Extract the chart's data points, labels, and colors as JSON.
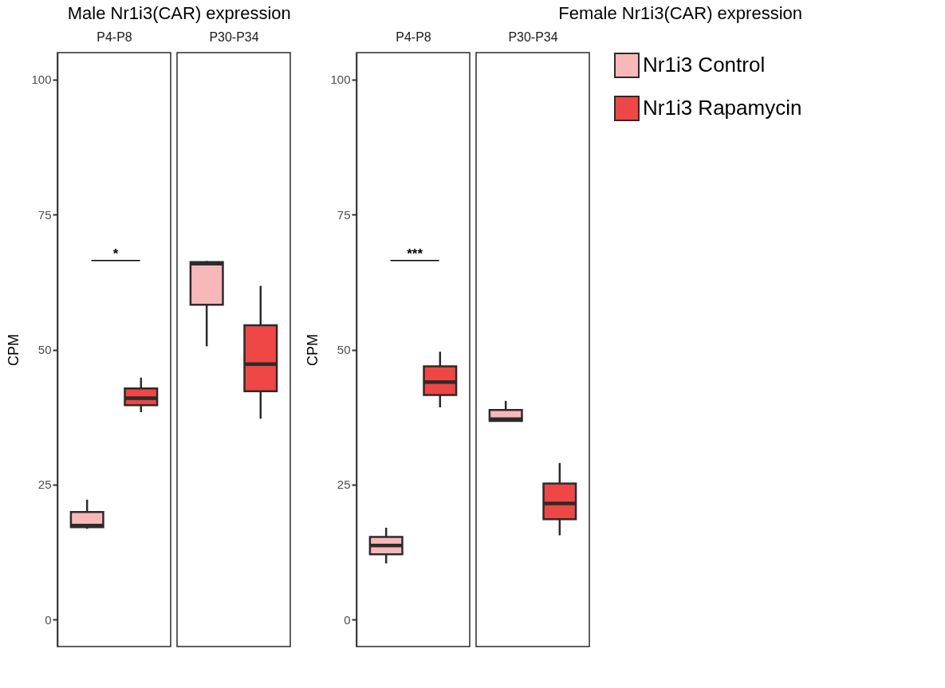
{
  "chart_data": [
    {
      "type": "box",
      "title": "Male Nr1i3(CAR) expression",
      "ylabel": "CPM",
      "categories": [
        "P4-P8",
        "P30-P34"
      ],
      "ylim": [
        -5,
        105
      ],
      "yticks": [
        0,
        25,
        50,
        75,
        100
      ],
      "annotations": [
        "*"
      ],
      "series": [
        {
          "color": "#f8b8b9",
          "boxes": [
            {
              "low": 16.8,
              "q1": 17.1,
              "median": 17.4,
              "q3": 19.9,
              "high": 22.2
            },
            {
              "low": 50.6,
              "q1": 58.3,
              "median": 65.9,
              "q3": 66.2,
              "high": 66.4
            }
          ]
        },
        {
          "color": "#ef4646",
          "boxes": [
            {
              "low": 38.4,
              "q1": 39.7,
              "median": 41.0,
              "q3": 42.8,
              "high": 44.8
            },
            {
              "low": 37.2,
              "q1": 42.3,
              "median": 47.3,
              "q3": 54.5,
              "high": 61.8
            }
          ]
        }
      ]
    },
    {
      "type": "box",
      "title": "Female Nr1i3(CAR) expression",
      "ylabel": "CPM",
      "categories": [
        "P4-P8",
        "P30-P34"
      ],
      "ylim": [
        -5,
        105
      ],
      "yticks": [
        0,
        25,
        50,
        75,
        100
      ],
      "legend": "right",
      "annotations": [
        "***"
      ],
      "series": [
        {
          "name": "Nr1i3 Control",
          "color": "#f8b8b9",
          "boxes": [
            {
              "low": 10.4,
              "q1": 12.1,
              "median": 13.7,
              "q3": 15.3,
              "high": 17.0
            },
            {
              "low": 36.8,
              "q1": 36.8,
              "median": 37.1,
              "q3": 38.8,
              "high": 40.5
            }
          ]
        },
        {
          "name": "Nr1i3 Rapamycin",
          "color": "#ef4646",
          "boxes": [
            {
              "low": 39.3,
              "q1": 41.6,
              "median": 44.0,
              "q3": 46.9,
              "high": 49.6
            },
            {
              "low": 15.6,
              "q1": 18.6,
              "median": 21.5,
              "q3": 25.2,
              "high": 29.0
            }
          ]
        }
      ]
    }
  ]
}
